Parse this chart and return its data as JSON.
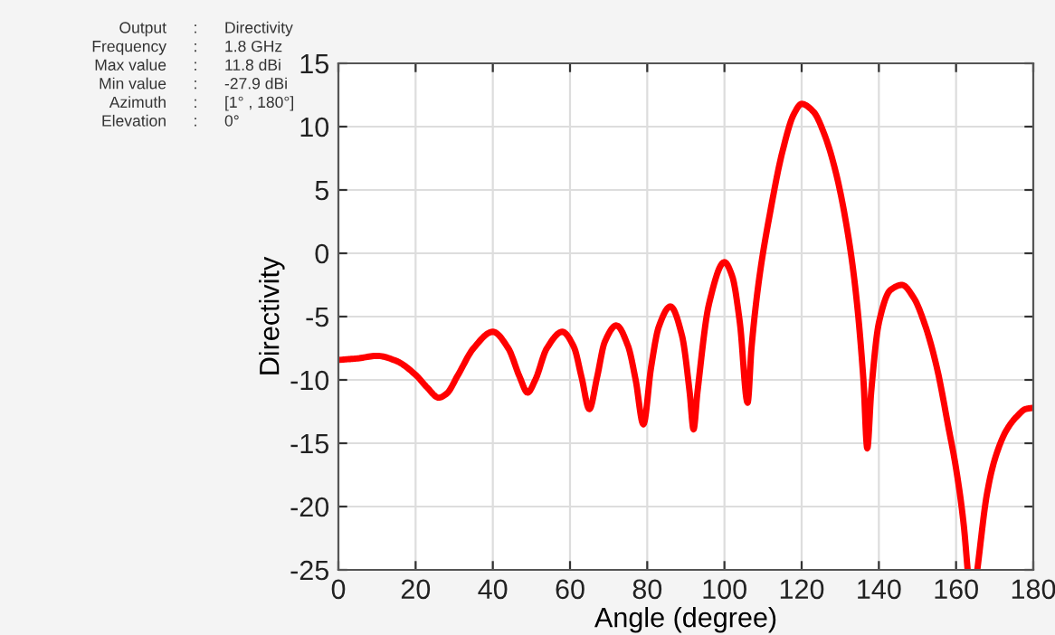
{
  "chart_data": {
    "type": "line",
    "xlabel": "Angle (degree)",
    "ylabel": "Directivity",
    "annotations": [
      "Output : Directivity",
      "Frequency : 1.8 GHz",
      "Max value : 11.8 dBi",
      "Min value : -27.9 dBi",
      "Azimuth : [1° , 180°]",
      "Elevation : 0°"
    ],
    "x": [
      1,
      5,
      10,
      15,
      20,
      23,
      26,
      28,
      31,
      35,
      40,
      44,
      47,
      49,
      51,
      54,
      58,
      61,
      63,
      65,
      67,
      69,
      72,
      75,
      77,
      79,
      81,
      83,
      86,
      89,
      91,
      92,
      93,
      96,
      100,
      102,
      104,
      106,
      107,
      109,
      112,
      115,
      118,
      120,
      123,
      126,
      129,
      132,
      134,
      136,
      137,
      138,
      140,
      143,
      146,
      149,
      152,
      155,
      158,
      160,
      162,
      163,
      164,
      165.5,
      168,
      170,
      173,
      176,
      178,
      180
    ],
    "series": [
      {
        "color": "#ff0000",
        "values": [
          -8.4,
          -8.3,
          -8.1,
          -8.5,
          -9.6,
          -10.6,
          -11.4,
          -11.1,
          -9.6,
          -7.5,
          -6.2,
          -7.5,
          -9.8,
          -11.0,
          -10.0,
          -7.5,
          -6.2,
          -7.4,
          -9.8,
          -12.3,
          -9.8,
          -7.0,
          -5.7,
          -7.3,
          -10.0,
          -13.5,
          -9.0,
          -5.8,
          -4.2,
          -6.5,
          -11.0,
          -13.9,
          -11.0,
          -4.0,
          -0.7,
          -1.8,
          -5.5,
          -11.8,
          -7.5,
          -2.0,
          3.5,
          8.0,
          11.0,
          11.8,
          11.2,
          9.3,
          6.2,
          1.5,
          -3.0,
          -10.0,
          -15.4,
          -11.0,
          -5.5,
          -2.9,
          -2.5,
          -3.5,
          -5.7,
          -9.0,
          -13.7,
          -17.0,
          -21.5,
          -25.0,
          null,
          -25.0,
          -19.0,
          -16.3,
          -14.0,
          -12.8,
          -12.3,
          -12.2
        ]
      }
    ],
    "xlim": [
      0,
      180
    ],
    "ylim": [
      -25,
      15
    ],
    "xticks": [
      0,
      20,
      40,
      60,
      80,
      100,
      120,
      140,
      160,
      180
    ],
    "yticks": [
      -25,
      -20,
      -15,
      -10,
      -5,
      0,
      5,
      10,
      15
    ],
    "grid": true,
    "marker": "none",
    "line_style": "solid"
  }
}
